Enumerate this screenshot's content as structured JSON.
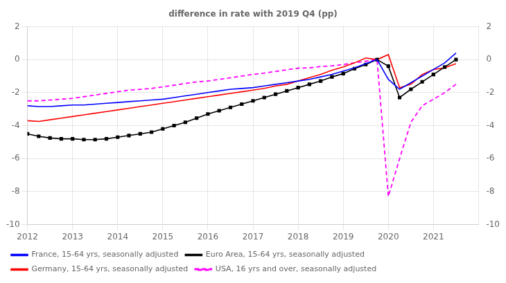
{
  "chart_data": {
    "type": "line",
    "title": "difference in rate with 2019 Q4 (pp)",
    "x": [
      2012.0,
      2012.25,
      2012.5,
      2012.75,
      2013.0,
      2013.25,
      2013.5,
      2013.75,
      2014.0,
      2014.25,
      2014.5,
      2014.75,
      2015.0,
      2015.25,
      2015.5,
      2015.75,
      2016.0,
      2016.25,
      2016.5,
      2016.75,
      2017.0,
      2017.25,
      2017.5,
      2017.75,
      2018.0,
      2018.25,
      2018.5,
      2018.75,
      2019.0,
      2019.25,
      2019.5,
      2019.75,
      2020.0,
      2020.25,
      2020.5,
      2020.75,
      2021.0,
      2021.25,
      2021.5
    ],
    "xlim": [
      2012.0,
      2022.0
    ],
    "xticks": [
      2012,
      2013,
      2014,
      2015,
      2016,
      2017,
      2018,
      2019,
      2020,
      2021
    ],
    "ylim": [
      -10,
      2
    ],
    "yticks": [
      -10,
      -8,
      -6,
      -4,
      -2,
      0,
      2
    ],
    "y2lim": [
      -10,
      2
    ],
    "y2ticks": [
      -10,
      -8,
      -6,
      -4,
      -2,
      0,
      2
    ],
    "grid": true,
    "legend": "lower left",
    "series": [
      {
        "name": "France, 15-64 yrs, seasonally adjusted",
        "color": "#0000ff",
        "line_style": "solid",
        "values": [
          -2.8,
          -2.85,
          -2.85,
          -2.8,
          -2.75,
          -2.75,
          -2.7,
          -2.65,
          -2.6,
          -2.55,
          -2.5,
          -2.45,
          -2.4,
          -2.3,
          -2.2,
          -2.1,
          -2.0,
          -1.9,
          -1.8,
          -1.75,
          -1.7,
          -1.6,
          -1.5,
          -1.4,
          -1.3,
          -1.2,
          -1.05,
          -0.9,
          -0.7,
          -0.5,
          -0.25,
          0.0,
          -1.2,
          -1.8,
          -1.4,
          -1.0,
          -0.6,
          -0.2,
          0.4
        ]
      },
      {
        "name": "Euro Area, 15-64 yrs, seasonally adjusted",
        "color": "#000000",
        "line_style": "solid",
        "marker": "square",
        "values": [
          -4.5,
          -4.65,
          -4.75,
          -4.8,
          -4.8,
          -4.85,
          -4.85,
          -4.8,
          -4.7,
          -4.6,
          -4.5,
          -4.4,
          -4.2,
          -4.0,
          -3.8,
          -3.55,
          -3.3,
          -3.1,
          -2.9,
          -2.7,
          -2.5,
          -2.3,
          -2.1,
          -1.9,
          -1.7,
          -1.5,
          -1.3,
          -1.05,
          -0.85,
          -0.55,
          -0.3,
          0.0,
          -0.4,
          -2.3,
          -1.8,
          -1.35,
          -0.9,
          -0.45,
          0.0
        ]
      },
      {
        "name": "Germany, 15-64 yrs, seasonally adjusted",
        "color": "#ff0000",
        "line_style": "solid",
        "values": [
          -3.7,
          -3.75,
          -3.65,
          -3.55,
          -3.45,
          -3.35,
          -3.25,
          -3.15,
          -3.05,
          -2.95,
          -2.85,
          -2.75,
          -2.65,
          -2.55,
          -2.45,
          -2.35,
          -2.25,
          -2.15,
          -2.05,
          -1.95,
          -1.85,
          -1.75,
          -1.6,
          -1.5,
          -1.3,
          -1.1,
          -0.9,
          -0.65,
          -0.45,
          -0.2,
          0.1,
          0.0,
          0.3,
          -1.7,
          -1.5,
          -0.9,
          -0.6,
          -0.5,
          -0.25
        ]
      },
      {
        "name": "USA, 16 yrs and over, seasonally adjusted",
        "color": "#ff00ff",
        "line_style": "dashed",
        "values": [
          -2.5,
          -2.5,
          -2.45,
          -2.4,
          -2.35,
          -2.25,
          -2.15,
          -2.05,
          -1.95,
          -1.85,
          -1.8,
          -1.75,
          -1.65,
          -1.55,
          -1.45,
          -1.35,
          -1.3,
          -1.2,
          -1.1,
          -1.0,
          -0.9,
          -0.82,
          -0.72,
          -0.62,
          -0.52,
          -0.5,
          -0.42,
          -0.38,
          -0.3,
          -0.2,
          -0.1,
          0.0,
          -8.3,
          -6.0,
          -3.8,
          -2.8,
          -2.4,
          -2.0,
          -1.5
        ]
      }
    ]
  }
}
